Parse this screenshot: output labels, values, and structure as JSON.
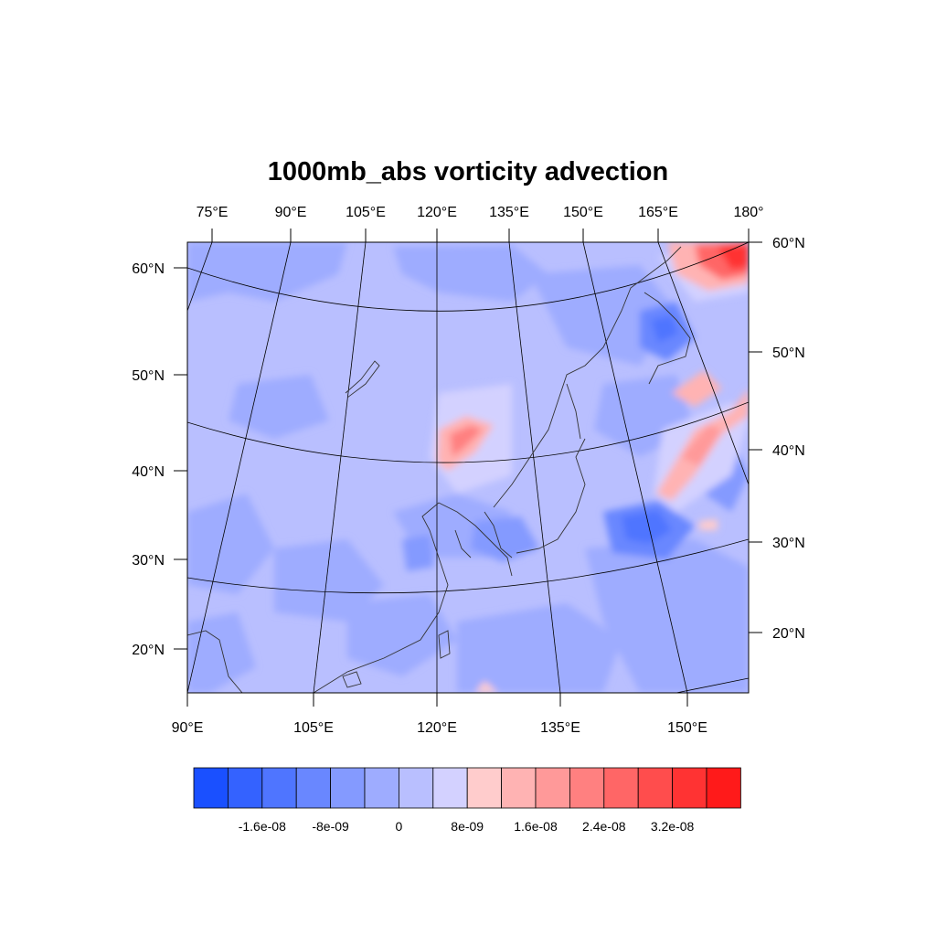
{
  "title": "1000mb_abs vorticity advection",
  "map": {
    "top_lon_labels": [
      "75°E",
      "90°E",
      "105°E",
      "120°E",
      "135°E",
      "150°E",
      "165°E",
      "180°"
    ],
    "bottom_lon_labels": [
      "90°E",
      "105°E",
      "120°E",
      "135°E",
      "150°E"
    ],
    "left_lat_labels": [
      "60°N",
      "50°N",
      "40°N",
      "30°N",
      "20°N"
    ],
    "right_lat_labels": [
      "60°N",
      "50°N",
      "40°N",
      "30°N",
      "20°N"
    ]
  },
  "colorbar": {
    "colors": [
      "#1a50ff",
      "#3462ff",
      "#4f75ff",
      "#6987ff",
      "#849aff",
      "#9eacff",
      "#b9bfff",
      "#d3d1ff",
      "#ffcccc",
      "#ffb3b3",
      "#ff9999",
      "#ff8080",
      "#ff6666",
      "#ff4d4d",
      "#ff3333",
      "#ff1a1a"
    ],
    "labels": [
      "-1.6e-08",
      "-8e-09",
      "0",
      "8e-09",
      "1.6e-08",
      "2.4e-08",
      "3.2e-08"
    ]
  }
}
